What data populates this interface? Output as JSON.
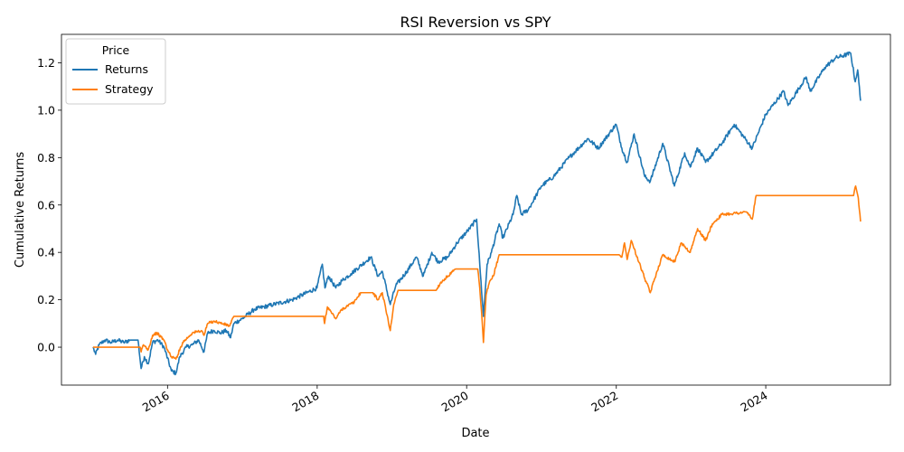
{
  "chart_data": {
    "type": "line",
    "title": "RSI Reversion vs SPY",
    "xlabel": "Date",
    "ylabel": "Cumulative Returns",
    "xlim": [
      "2014-08-01",
      "2025-09-01"
    ],
    "ylim": [
      -0.16,
      1.32
    ],
    "x_ticks": [
      "2016",
      "2018",
      "2020",
      "2022",
      "2024"
    ],
    "y_ticks": [
      "0.0",
      "0.2",
      "0.4",
      "0.6",
      "0.8",
      "1.0",
      "1.2"
    ],
    "grid": false,
    "legend": {
      "title": "Price",
      "position": "top-left"
    },
    "series": [
      {
        "name": "Returns",
        "color": "#1f77b4",
        "points": [
          [
            "2015-01-02",
            0.0
          ],
          [
            "2015-01-15",
            -0.03
          ],
          [
            "2015-02-01",
            0.01
          ],
          [
            "2015-03-01",
            0.03
          ],
          [
            "2015-04-01",
            0.02
          ],
          [
            "2015-05-01",
            0.03
          ],
          [
            "2015-06-01",
            0.02
          ],
          [
            "2015-07-01",
            0.03
          ],
          [
            "2015-08-10",
            0.03
          ],
          [
            "2015-08-25",
            -0.09
          ],
          [
            "2015-09-10",
            -0.04
          ],
          [
            "2015-09-29",
            -0.07
          ],
          [
            "2015-10-20",
            0.02
          ],
          [
            "2015-11-15",
            0.03
          ],
          [
            "2015-12-15",
            0.0
          ],
          [
            "2016-01-20",
            -0.1
          ],
          [
            "2016-02-11",
            -0.11
          ],
          [
            "2016-03-01",
            -0.04
          ],
          [
            "2016-04-01",
            0.0
          ],
          [
            "2016-05-01",
            0.01
          ],
          [
            "2016-06-01",
            0.03
          ],
          [
            "2016-06-27",
            -0.02
          ],
          [
            "2016-07-15",
            0.06
          ],
          [
            "2016-08-15",
            0.07
          ],
          [
            "2016-09-15",
            0.06
          ],
          [
            "2016-10-15",
            0.07
          ],
          [
            "2016-11-04",
            0.04
          ],
          [
            "2016-11-20",
            0.1
          ],
          [
            "2016-12-31",
            0.12
          ],
          [
            "2017-03-01",
            0.16
          ],
          [
            "2017-06-01",
            0.18
          ],
          [
            "2017-09-01",
            0.2
          ],
          [
            "2017-12-31",
            0.25
          ],
          [
            "2018-01-26",
            0.35
          ],
          [
            "2018-02-08",
            0.25
          ],
          [
            "2018-02-25",
            0.3
          ],
          [
            "2018-04-02",
            0.25
          ],
          [
            "2018-05-01",
            0.28
          ],
          [
            "2018-06-15",
            0.31
          ],
          [
            "2018-09-20",
            0.38
          ],
          [
            "2018-10-25",
            0.3
          ],
          [
            "2018-11-15",
            0.32
          ],
          [
            "2018-12-24",
            0.18
          ],
          [
            "2019-01-20",
            0.26
          ],
          [
            "2019-03-15",
            0.32
          ],
          [
            "2019-05-01",
            0.38
          ],
          [
            "2019-06-03",
            0.3
          ],
          [
            "2019-07-15",
            0.4
          ],
          [
            "2019-08-15",
            0.36
          ],
          [
            "2019-10-01",
            0.38
          ],
          [
            "2019-11-15",
            0.44
          ],
          [
            "2020-01-15",
            0.5
          ],
          [
            "2020-02-19",
            0.54
          ],
          [
            "2020-03-05",
            0.35
          ],
          [
            "2020-03-23",
            0.13
          ],
          [
            "2020-04-10",
            0.35
          ],
          [
            "2020-05-01",
            0.4
          ],
          [
            "2020-06-08",
            0.52
          ],
          [
            "2020-06-26",
            0.46
          ],
          [
            "2020-08-15",
            0.56
          ],
          [
            "2020-09-02",
            0.64
          ],
          [
            "2020-09-24",
            0.56
          ],
          [
            "2020-10-28",
            0.58
          ],
          [
            "2020-12-31",
            0.68
          ],
          [
            "2021-03-01",
            0.72
          ],
          [
            "2021-05-15",
            0.8
          ],
          [
            "2021-08-15",
            0.88
          ],
          [
            "2021-10-05",
            0.84
          ],
          [
            "2021-12-31",
            0.94
          ],
          [
            "2022-01-28",
            0.84
          ],
          [
            "2022-02-23",
            0.78
          ],
          [
            "2022-03-29",
            0.9
          ],
          [
            "2022-05-20",
            0.72
          ],
          [
            "2022-06-16",
            0.7
          ],
          [
            "2022-08-16",
            0.86
          ],
          [
            "2022-10-12",
            0.68
          ],
          [
            "2022-12-01",
            0.82
          ],
          [
            "2022-12-28",
            0.76
          ],
          [
            "2023-02-02",
            0.84
          ],
          [
            "2023-03-13",
            0.78
          ],
          [
            "2023-06-01",
            0.86
          ],
          [
            "2023-07-31",
            0.94
          ],
          [
            "2023-10-27",
            0.84
          ],
          [
            "2023-12-31",
            0.98
          ],
          [
            "2024-03-28",
            1.08
          ],
          [
            "2024-04-19",
            1.02
          ],
          [
            "2024-07-16",
            1.14
          ],
          [
            "2024-08-05",
            1.08
          ],
          [
            "2024-10-15",
            1.18
          ],
          [
            "2024-12-06",
            1.22
          ],
          [
            "2025-02-19",
            1.24
          ],
          [
            "2025-03-13",
            1.12
          ],
          [
            "2025-03-25",
            1.17
          ],
          [
            "2025-04-08",
            1.04
          ]
        ]
      },
      {
        "name": "Strategy",
        "color": "#ff7f0e",
        "points": [
          [
            "2015-01-02",
            0.0
          ],
          [
            "2015-08-20",
            0.0
          ],
          [
            "2015-08-25",
            -0.02
          ],
          [
            "2015-09-05",
            0.01
          ],
          [
            "2015-09-29",
            -0.01
          ],
          [
            "2015-10-20",
            0.05
          ],
          [
            "2015-11-10",
            0.06
          ],
          [
            "2015-12-15",
            0.03
          ],
          [
            "2016-01-05",
            -0.02
          ],
          [
            "2016-01-20",
            -0.04
          ],
          [
            "2016-02-11",
            -0.05
          ],
          [
            "2016-03-15",
            0.02
          ],
          [
            "2016-05-01",
            0.06
          ],
          [
            "2016-06-15",
            0.07
          ],
          [
            "2016-06-27",
            0.05
          ],
          [
            "2016-07-15",
            0.1
          ],
          [
            "2016-08-15",
            0.11
          ],
          [
            "2016-10-31",
            0.09
          ],
          [
            "2016-11-20",
            0.13
          ],
          [
            "2018-02-02",
            0.13
          ],
          [
            "2018-02-06",
            0.1
          ],
          [
            "2018-02-20",
            0.17
          ],
          [
            "2018-04-02",
            0.12
          ],
          [
            "2018-05-01",
            0.16
          ],
          [
            "2018-07-01",
            0.19
          ],
          [
            "2018-08-01",
            0.23
          ],
          [
            "2018-09-30",
            0.23
          ],
          [
            "2018-10-25",
            0.2
          ],
          [
            "2018-11-15",
            0.23
          ],
          [
            "2018-12-24",
            0.07
          ],
          [
            "2019-01-10",
            0.18
          ],
          [
            "2019-01-31",
            0.24
          ],
          [
            "2019-08-05",
            0.24
          ],
          [
            "2019-08-25",
            0.27
          ],
          [
            "2019-10-01",
            0.3
          ],
          [
            "2019-11-10",
            0.33
          ],
          [
            "2020-02-24",
            0.33
          ],
          [
            "2020-03-05",
            0.25
          ],
          [
            "2020-03-16",
            0.12
          ],
          [
            "2020-03-23",
            0.02
          ],
          [
            "2020-04-05",
            0.22
          ],
          [
            "2020-04-20",
            0.27
          ],
          [
            "2020-05-10",
            0.3
          ],
          [
            "2020-06-08",
            0.39
          ],
          [
            "2022-01-15",
            0.39
          ],
          [
            "2022-01-28",
            0.38
          ],
          [
            "2022-02-10",
            0.44
          ],
          [
            "2022-02-23",
            0.37
          ],
          [
            "2022-03-15",
            0.45
          ],
          [
            "2022-05-20",
            0.29
          ],
          [
            "2022-06-16",
            0.23
          ],
          [
            "2022-07-15",
            0.31
          ],
          [
            "2022-08-16",
            0.39
          ],
          [
            "2022-10-12",
            0.36
          ],
          [
            "2022-11-15",
            0.44
          ],
          [
            "2022-12-28",
            0.4
          ],
          [
            "2023-02-02",
            0.5
          ],
          [
            "2023-03-13",
            0.45
          ],
          [
            "2023-04-15",
            0.52
          ],
          [
            "2023-06-01",
            0.56
          ],
          [
            "2023-10-01",
            0.57
          ],
          [
            "2023-10-27",
            0.54
          ],
          [
            "2023-11-15",
            0.64
          ],
          [
            "2025-03-05",
            0.64
          ],
          [
            "2025-03-15",
            0.68
          ],
          [
            "2025-03-28",
            0.63
          ],
          [
            "2025-04-08",
            0.53
          ]
        ]
      }
    ]
  }
}
